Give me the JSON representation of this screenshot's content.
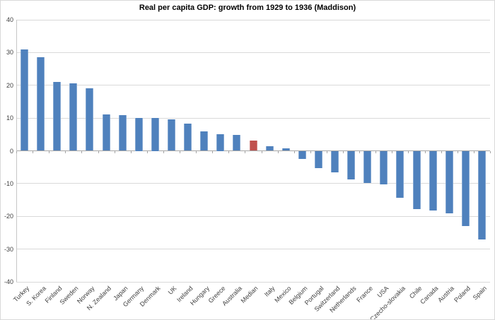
{
  "chart_data": {
    "type": "bar",
    "title": "Real per capita GDP: growth from 1929 to 1936  (Maddison)",
    "categories": [
      "Turkey",
      "S. Korea",
      "Finland",
      "Sweden",
      "Norway",
      "N. Zealand",
      "Japan",
      "Germany",
      "Denmark",
      "UK",
      "Ireland",
      "Hungary",
      "Greece",
      "Australia",
      "Median",
      "Italy",
      "Mexico",
      "Belgium",
      "Portugal",
      "Switzerland",
      "Netherlands",
      "France",
      "USA",
      "Czecho-slovakia",
      "Chile",
      "Canada",
      "Austria",
      "Poland",
      "Spain"
    ],
    "values": [
      31,
      28.5,
      21,
      20.5,
      19,
      11.1,
      10.8,
      10,
      10,
      9.7,
      8.2,
      6,
      5,
      4.9,
      3.2,
      1.3,
      0.8,
      -2.5,
      -5.2,
      -6.6,
      -8.7,
      -9.9,
      -10.3,
      -14.4,
      -17.7,
      -18.3,
      -19,
      -23,
      -27
    ],
    "highlight_category": "Median",
    "highlight_index": 14,
    "ylim": [
      -40,
      40
    ],
    "ytick_interval": 10,
    "ytick_labels": [
      "40",
      "30",
      "20",
      "10",
      "0",
      "-10",
      "-20",
      "-30",
      "-40"
    ],
    "grid": true,
    "legend": "none",
    "xlabel": "",
    "ylabel": "",
    "colors": {
      "bar": "#4f81bd",
      "highlight_bar": "#c0504d",
      "gridline": "#d9d9d9",
      "zero_axis": "#a6a6a6",
      "axis_line": "#c6c6c6",
      "tick_label": "#404040",
      "title": "#000000",
      "background": "#ffffff",
      "border": "#d9d9d9"
    }
  }
}
